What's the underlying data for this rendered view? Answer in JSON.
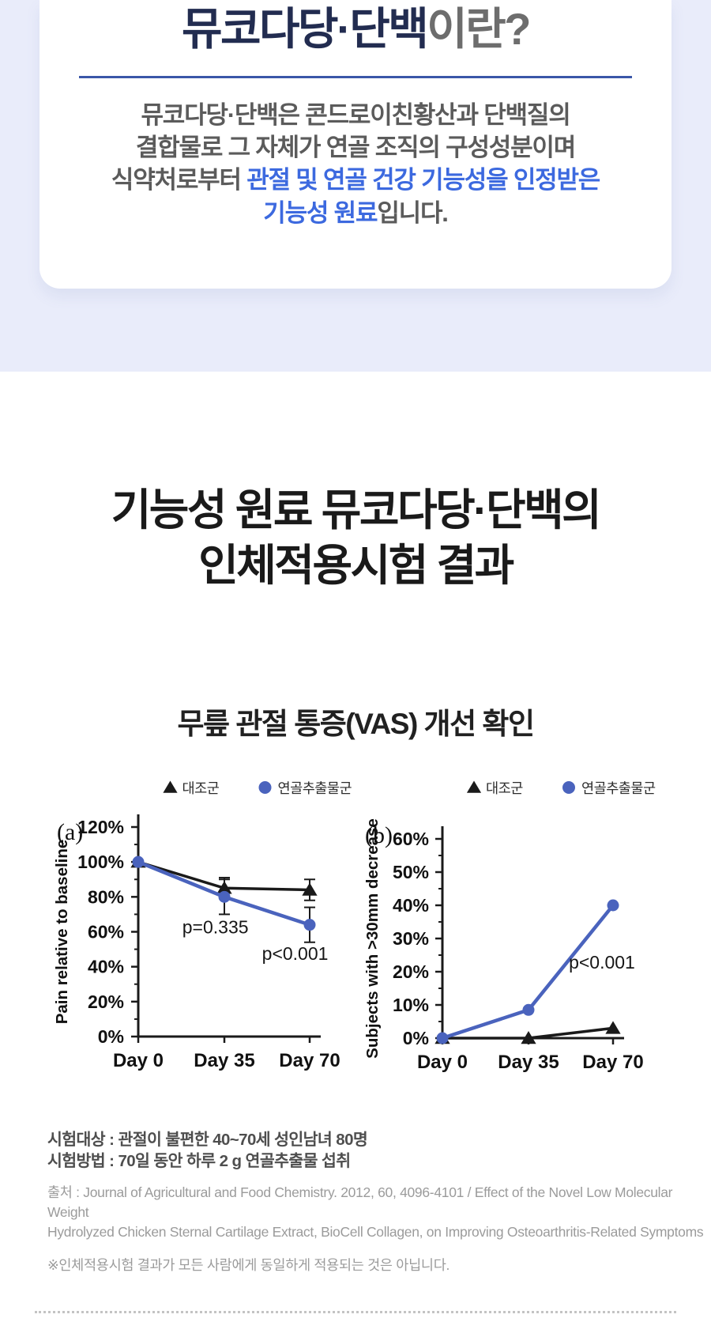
{
  "colors": {
    "accent_blue": "#3c69df",
    "divider_blue": "#3a57a8",
    "panel_bg": "#e9ecfa",
    "title_navy": "#222c50",
    "chart_blue": "#4a63bd",
    "chart_black": "#1a1a1a"
  },
  "hero": {
    "title_main": "뮤코다당·단백",
    "title_suffix": "이란?",
    "body": {
      "line1": "뮤코다당·단백은 콘드로이친황산과 단백질의",
      "line2": "결합물로 그 자체가 연골 조직의 구성성분이며",
      "line3_gray": "식약처로부터 ",
      "line3_blue": "관절 및 연골 건강 기능성을 인정받은",
      "line4_blue": "기능성 원료",
      "line4_gray": "입니다."
    }
  },
  "results": {
    "heading_line1": "기능성 원료 뮤코다당·단백의",
    "heading_line2": "인체적용시험 결과",
    "chart_title": "무릎 관절 통증(VAS) 개선 확인"
  },
  "chart_data": [
    {
      "type": "line",
      "panel_label": "(a)",
      "ylabel": "Pain relative to baseline",
      "xlabel": "",
      "categories": [
        "Day 0",
        "Day 35",
        "Day 70"
      ],
      "ylim": [
        0,
        120
      ],
      "ytick_step": 20,
      "ytick_suffix": "%",
      "grid": false,
      "legend_position": "top",
      "series": [
        {
          "name": "대조군",
          "marker": "triangle",
          "color": "#1a1a1a",
          "values": [
            100,
            85,
            84
          ],
          "errors": [
            0,
            6,
            6
          ]
        },
        {
          "name": "연골추출물군",
          "marker": "circle",
          "color": "#4a63bd",
          "values": [
            100,
            80,
            64
          ],
          "errors": [
            0,
            10,
            10
          ]
        }
      ],
      "annotations": [
        {
          "text": "p=0.335",
          "x": 0.9,
          "y": 59
        },
        {
          "text": "p<0.001",
          "x": 1.83,
          "y": 44
        }
      ]
    },
    {
      "type": "line",
      "panel_label": "(b)",
      "ylabel": "Subjects with >30mm decrease",
      "xlabel": "",
      "categories": [
        "Day 0",
        "Day 35",
        "Day 70"
      ],
      "ylim": [
        0,
        60
      ],
      "ytick_step": 10,
      "ytick_suffix": "%",
      "grid": false,
      "legend_position": "top",
      "series": [
        {
          "name": "대조군",
          "marker": "triangle",
          "color": "#1a1a1a",
          "values": [
            0,
            0,
            3
          ],
          "errors": [
            0,
            0,
            0
          ]
        },
        {
          "name": "연골추출물군",
          "marker": "circle",
          "color": "#4a63bd",
          "values": [
            0,
            8.5,
            40
          ],
          "errors": [
            0,
            0,
            0
          ]
        }
      ],
      "annotations": [
        {
          "text": "p<0.001",
          "x": 1.87,
          "y": 21
        }
      ]
    }
  ],
  "footnotes": {
    "subject": "시험대상 : 관절이 불편한 40~70세 성인남녀 80명",
    "method": "시험방법 : 70일 동안 하루 2 g 연골추출물 섭취",
    "source_line1": "출처 : Journal of Agricultural and Food Chemistry. 2012, 60, 4096-4101 / Effect of the Novel Low Molecular Weight",
    "source_line2": "Hydrolyzed Chicken Sternal Cartilage Extract, BioCell Collagen, on Improving Osteoarthritis-Related Symptoms",
    "disclaimer": "※인체적용시험 결과가 모든 사람에게 동일하게 적용되는 것은 아닙니다."
  }
}
